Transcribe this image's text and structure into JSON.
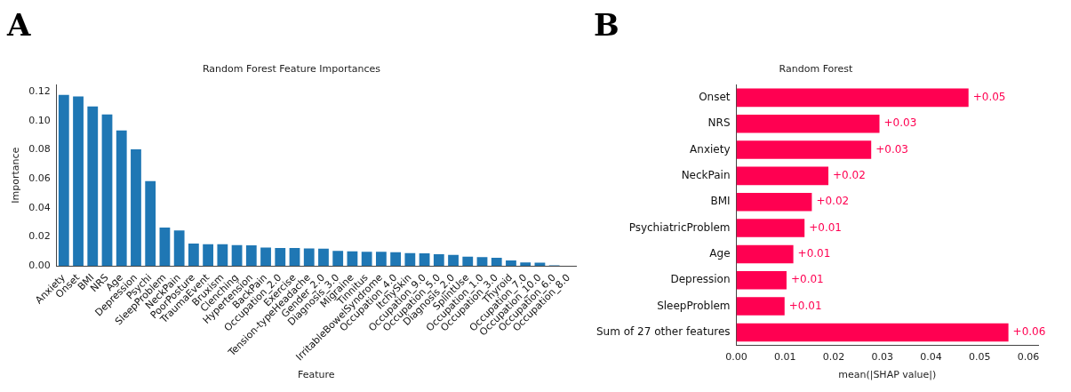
{
  "chart_data": [
    {
      "type": "bar",
      "title": "Random Forest Feature Importances",
      "xlabel": "Feature",
      "ylabel": "Importance",
      "annotations": [
        "A"
      ],
      "categories": [
        "Anxiety",
        "Onset",
        "BMI",
        "NRS",
        "Age",
        "Depression",
        "Psychi",
        "SleepProblem",
        "NeckPain",
        "PoorPosture",
        "TraumaEvent",
        "Bruxism",
        "Clenching",
        "Hypertension",
        "BackPain",
        "Occupation_2.0",
        "Exercise",
        "Tension-typeHeadache",
        "Gender_2.0",
        "Diagnosis_3.0",
        "Migraine",
        "Tinnitus",
        "IrritableBowelSyndrome",
        "Occupation_4.0",
        "ItchySkin",
        "Occupation_9.0",
        "Occupation_5.0",
        "Diagnosis_2.0",
        "SplintUse",
        "Occupation_1.0",
        "Occupation_3.0",
        "Thyroid",
        "Occupation_7.0",
        "Occupation_10.0",
        "Occupation_6.0",
        "Occupation_8.0"
      ],
      "values": [
        0.1185,
        0.1175,
        0.1105,
        0.105,
        0.094,
        0.081,
        0.059,
        0.027,
        0.025,
        0.016,
        0.0155,
        0.0155,
        0.015,
        0.0147,
        0.0132,
        0.013,
        0.013,
        0.0127,
        0.0124,
        0.011,
        0.0107,
        0.0104,
        0.0103,
        0.01,
        0.0094,
        0.0093,
        0.0087,
        0.0082,
        0.007,
        0.0067,
        0.0062,
        0.0044,
        0.0029,
        0.0028,
        0.0007,
        0
      ],
      "color": "#1f77b4",
      "ylim": [
        0,
        0.125
      ],
      "yticks": [
        {
          "value": 0,
          "label": "0.00"
        },
        {
          "value": 0.02,
          "label": "0.02"
        },
        {
          "value": 0.04,
          "label": "0.04"
        },
        {
          "value": 0.06,
          "label": "0.06"
        },
        {
          "value": 0.08,
          "label": "0.08"
        },
        {
          "value": 0.1,
          "label": "0.10"
        },
        {
          "value": 0.12,
          "label": "0.12"
        }
      ],
      "grid": false,
      "legend": false
    },
    {
      "type": "bar",
      "orientation": "horizontal",
      "title": "Random Forest",
      "xlabel": "mean(|SHAP value|)",
      "annotations": [
        "B"
      ],
      "categories": [
        "Onset",
        "NRS",
        "Anxiety",
        "NeckPain",
        "BMI",
        "PsychiatricProblem",
        "Age",
        "Depression",
        "SleepProblem",
        "Sum of 27 other features"
      ],
      "values": [
        0.0477,
        0.0294,
        0.0277,
        0.0189,
        0.0155,
        0.014,
        0.0117,
        0.0103,
        0.0099,
        0.0559
      ],
      "value_labels": [
        "+0.05",
        "+0.03",
        "+0.03",
        "+0.02",
        "+0.02",
        "+0.01",
        "+0.01",
        "+0.01",
        "+0.01",
        "+0.06"
      ],
      "color": "#ff0051",
      "xlim": [
        0,
        0.062
      ],
      "xticks": [
        {
          "value": 0,
          "label": "0.00"
        },
        {
          "value": 0.01,
          "label": "0.01"
        },
        {
          "value": 0.02,
          "label": "0.02"
        },
        {
          "value": 0.03,
          "label": "0.03"
        },
        {
          "value": 0.04,
          "label": "0.04"
        },
        {
          "value": 0.05,
          "label": "0.05"
        },
        {
          "value": 0.06,
          "label": "0.06"
        }
      ],
      "grid": false,
      "legend": false
    }
  ]
}
